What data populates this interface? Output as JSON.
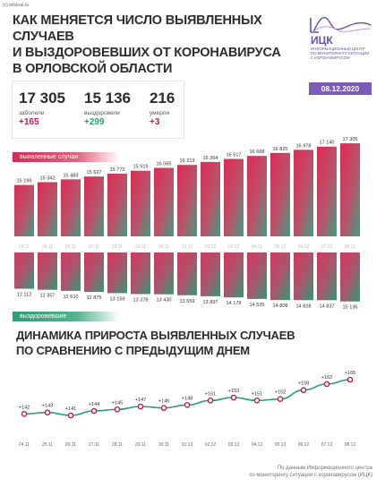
{
  "copyright": "(c) infokrai.ru",
  "title_lines": [
    "КАК МЕНЯЕТСЯ ЧИСЛО ВЫЯВЛЕННЫХ СЛУЧАЕВ",
    "И ВЫЗДОРОВЕВШИХ ОТ КОРОНАВИРУСА",
    "В ОРЛОВСКОЙ ОБЛАСТИ"
  ],
  "logo": {
    "name": "ИЦК",
    "description_lines": [
      "ИНФОРМАЦИОННЫЙ ЦЕНТР",
      "ПО МОНИТОРИНГУ СИТУАЦИИ",
      "С КОРОНАВИРУСОМ"
    ]
  },
  "date": "08.12.2020",
  "stats": {
    "infected": {
      "value": "17 305",
      "label": "заболели",
      "delta": "+165"
    },
    "recovered": {
      "value": "15 136",
      "label": "выздоровели",
      "delta": "+299"
    },
    "died": {
      "value": "216",
      "label": "умерли",
      "delta": "+3"
    }
  },
  "labels": {
    "cases_pill": "выявленные случаи",
    "recovered_pill": "выздоровевшие"
  },
  "heading2_lines": [
    "ДИНАМИКА ПРИРОСТА ВЫЯВЛЕННЫХ СЛУЧАЕВ",
    "ПО СРАВНЕНИЮ С ПРЕДЫДУЩИМ ДНЕМ"
  ],
  "footnote_lines": [
    "По данным Информационного центра",
    "по мониторингу ситуации с коронавирусом (ИЦК)"
  ],
  "colors": {
    "cases": "#d12d55",
    "recovered": "#2e9b78",
    "line": "#2e9b78",
    "points": "#c2185b",
    "accent": "#7b5cb8"
  },
  "chart_data": [
    {
      "type": "bar",
      "categories": [
        "24.11",
        "25.11",
        "26.11",
        "27.11",
        "28.11",
        "29.11",
        "30.11",
        "01.12",
        "02.12",
        "03.12",
        "04.12",
        "05.12",
        "06.12",
        "07.12",
        "08.12"
      ],
      "series": [
        {
          "name": "выявленные случаи",
          "values": [
            15199,
            15342,
            15483,
            15627,
            15772,
            15919,
            16065,
            16213,
            16364,
            16517,
            16668,
            16820,
            16978,
            17140,
            17305
          ]
        }
      ],
      "value_labels": [
        "15 199",
        "15 342",
        "15 483",
        "15 627",
        "15 772",
        "15 919",
        "16 065",
        "16 213",
        "16 364",
        "16 517",
        "16 668",
        "16 820",
        "16 978",
        "17 140",
        "17 305"
      ]
    },
    {
      "type": "bar",
      "categories": [
        "24.11",
        "25.11",
        "26.11",
        "27.11",
        "28.11",
        "29.11",
        "30.11",
        "01.12",
        "02.12",
        "03.12",
        "04.12",
        "05.12",
        "06.12",
        "07.12",
        "08.12"
      ],
      "series": [
        {
          "name": "выздоровевшие",
          "values": [
            12112,
            12357,
            12610,
            12875,
            13159,
            13378,
            13430,
            13659,
            13897,
            14178,
            14535,
            14808,
            14828,
            14837,
            15136
          ]
        }
      ],
      "value_labels": [
        "12 112",
        "12 357",
        "12 610",
        "12 875",
        "13 159",
        "13 378",
        "13 430",
        "13 659",
        "13 897",
        "14 178",
        "14 535",
        "14 808",
        "14 828",
        "14 837",
        "15 136"
      ]
    },
    {
      "type": "line",
      "title": "ДИНАМИКА ПРИРОСТА ВЫЯВЛЕННЫХ СЛУЧАЕВ ПО СРАВНЕНИЮ С ПРЕДЫДУЩИМ ДНЕМ",
      "categories": [
        "24.11",
        "25.11",
        "26.11",
        "27.11",
        "28.11",
        "29.11",
        "30.11",
        "01.12",
        "02.12",
        "03.12",
        "04.12",
        "05.12",
        "06.12",
        "07.12",
        "08.12"
      ],
      "series": [
        {
          "values": [
            142,
            143,
            141,
            144,
            145,
            147,
            146,
            148,
            151,
            153,
            151,
            152,
            158,
            162,
            165
          ]
        }
      ],
      "value_labels": [
        "+142",
        "+143",
        "+141",
        "+144",
        "+145",
        "+147",
        "+146",
        "+148",
        "+151",
        "+153",
        "+151",
        "+152",
        "+158",
        "+162",
        "+165"
      ]
    }
  ]
}
